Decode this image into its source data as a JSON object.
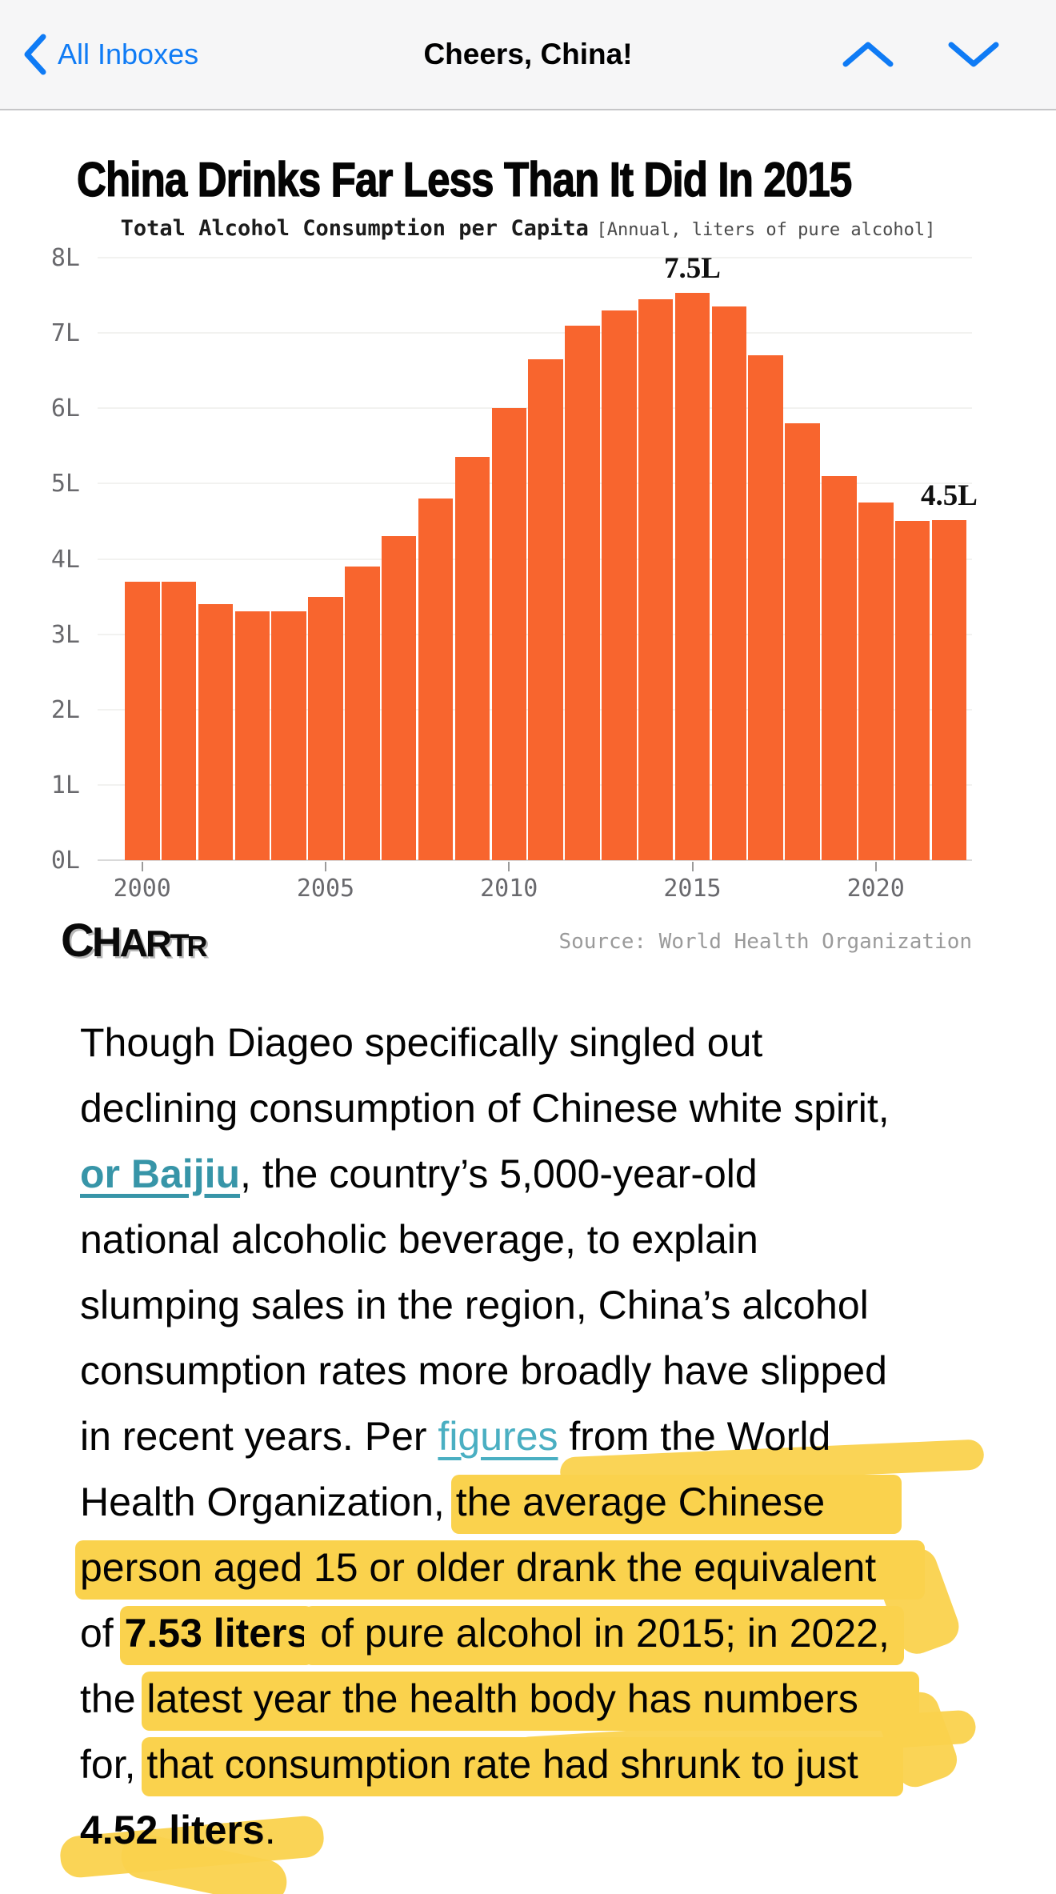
{
  "nav": {
    "back_label": "All Inboxes",
    "title": "Cheers, China!",
    "icons": {
      "back": "chevron-left",
      "previous_message": "chevron-up",
      "next_message": "chevron-down"
    },
    "accent_color": "#0f7bf5"
  },
  "chart": {
    "title": "China Drinks Far Less Than It Did In 2015",
    "subtitle_bold": "Total Alcohol Consumption per Capita",
    "subtitle_note": "[Annual, liters of pure alcohol]",
    "source": "Source: World Health Organization",
    "logo_letters": [
      "C",
      "H",
      "A",
      "R",
      "T",
      "R"
    ]
  },
  "chart_data": {
    "type": "bar",
    "title": "China Drinks Far Less Than It Did In 2015",
    "subtitle": "Total Alcohol Consumption per Capita [Annual, liters of pure alcohol]",
    "x": [
      2000,
      2001,
      2002,
      2003,
      2004,
      2005,
      2006,
      2007,
      2008,
      2009,
      2010,
      2011,
      2012,
      2013,
      2014,
      2015,
      2016,
      2017,
      2018,
      2019,
      2020,
      2021,
      2022
    ],
    "values": [
      3.7,
      3.7,
      3.4,
      3.3,
      3.3,
      3.5,
      3.9,
      4.3,
      4.8,
      5.35,
      6.0,
      6.65,
      7.1,
      7.3,
      7.45,
      7.53,
      7.35,
      6.7,
      5.8,
      5.1,
      4.75,
      4.5,
      4.52
    ],
    "ylim": [
      0,
      8
    ],
    "y_ticks": [
      0,
      1,
      2,
      3,
      4,
      5,
      6,
      7,
      8
    ],
    "y_tick_suffix": "L",
    "x_ticks": [
      2000,
      2005,
      2010,
      2015,
      2020
    ],
    "grid": "horizontal",
    "legend": "none",
    "bar_color": "#f8652e",
    "annotations": [
      {
        "x": 2015,
        "label": "7.5L"
      },
      {
        "x": 2022,
        "label": "4.5L"
      }
    ],
    "source": "Source: World Health Organization"
  },
  "article": {
    "colors": {
      "highlight": "#fad24d",
      "link_bold": "#3795a8",
      "link": "#4aafc2"
    },
    "lines": [
      {
        "segments": [
          {
            "t": "Though Diageo specifically singled out",
            "s": "p"
          }
        ]
      },
      {
        "segments": [
          {
            "t": "declining consumption of Chinese white spirit,",
            "s": "p"
          }
        ]
      },
      {
        "segments": [
          {
            "t": "or Baijiu",
            "s": "lb"
          },
          {
            "t": ", the country’s 5,000-year-old",
            "s": "p"
          }
        ]
      },
      {
        "segments": [
          {
            "t": "national alcoholic beverage, to explain",
            "s": "p"
          }
        ]
      },
      {
        "segments": [
          {
            "t": "slumping sales in the region, China’s alcohol",
            "s": "p"
          }
        ]
      },
      {
        "segments": [
          {
            "t": "consumption rates more broadly have slipped",
            "s": "p"
          }
        ]
      },
      {
        "segments": [
          {
            "t": "in recent years. Per ",
            "s": "p"
          },
          {
            "t": "figures",
            "s": "l"
          },
          {
            "t": " from the World",
            "s": "p"
          }
        ]
      },
      {
        "segments": [
          {
            "t": "Health Organization, ",
            "s": "p"
          },
          {
            "t": "the average Chinese",
            "s": "h",
            "ext": 90
          }
        ]
      },
      {
        "segments": [
          {
            "t": "person aged 15 or older drank the equivalent",
            "s": "h",
            "ext": 55
          }
        ]
      },
      {
        "segments": [
          {
            "t": "of ",
            "s": "p"
          },
          {
            "t": "7.53 liters",
            "s": "hb"
          },
          {
            "t": " of pure alcohol in 2015; in 2022,",
            "s": "h",
            "ext": 12
          }
        ]
      },
      {
        "segments": [
          {
            "t": "the ",
            "s": "p"
          },
          {
            "t": "latest year the health body has numbers",
            "s": "h",
            "ext": 70
          }
        ]
      },
      {
        "segments": [
          {
            "t": "for, ",
            "s": "p"
          },
          {
            "t": "that consumption rate had shrunk to just",
            "s": "h",
            "ext": 50
          }
        ]
      },
      {
        "segments": [
          {
            "t": "4.52 liters",
            "s": "b"
          },
          {
            "t": ".",
            "s": "p"
          }
        ]
      }
    ]
  }
}
